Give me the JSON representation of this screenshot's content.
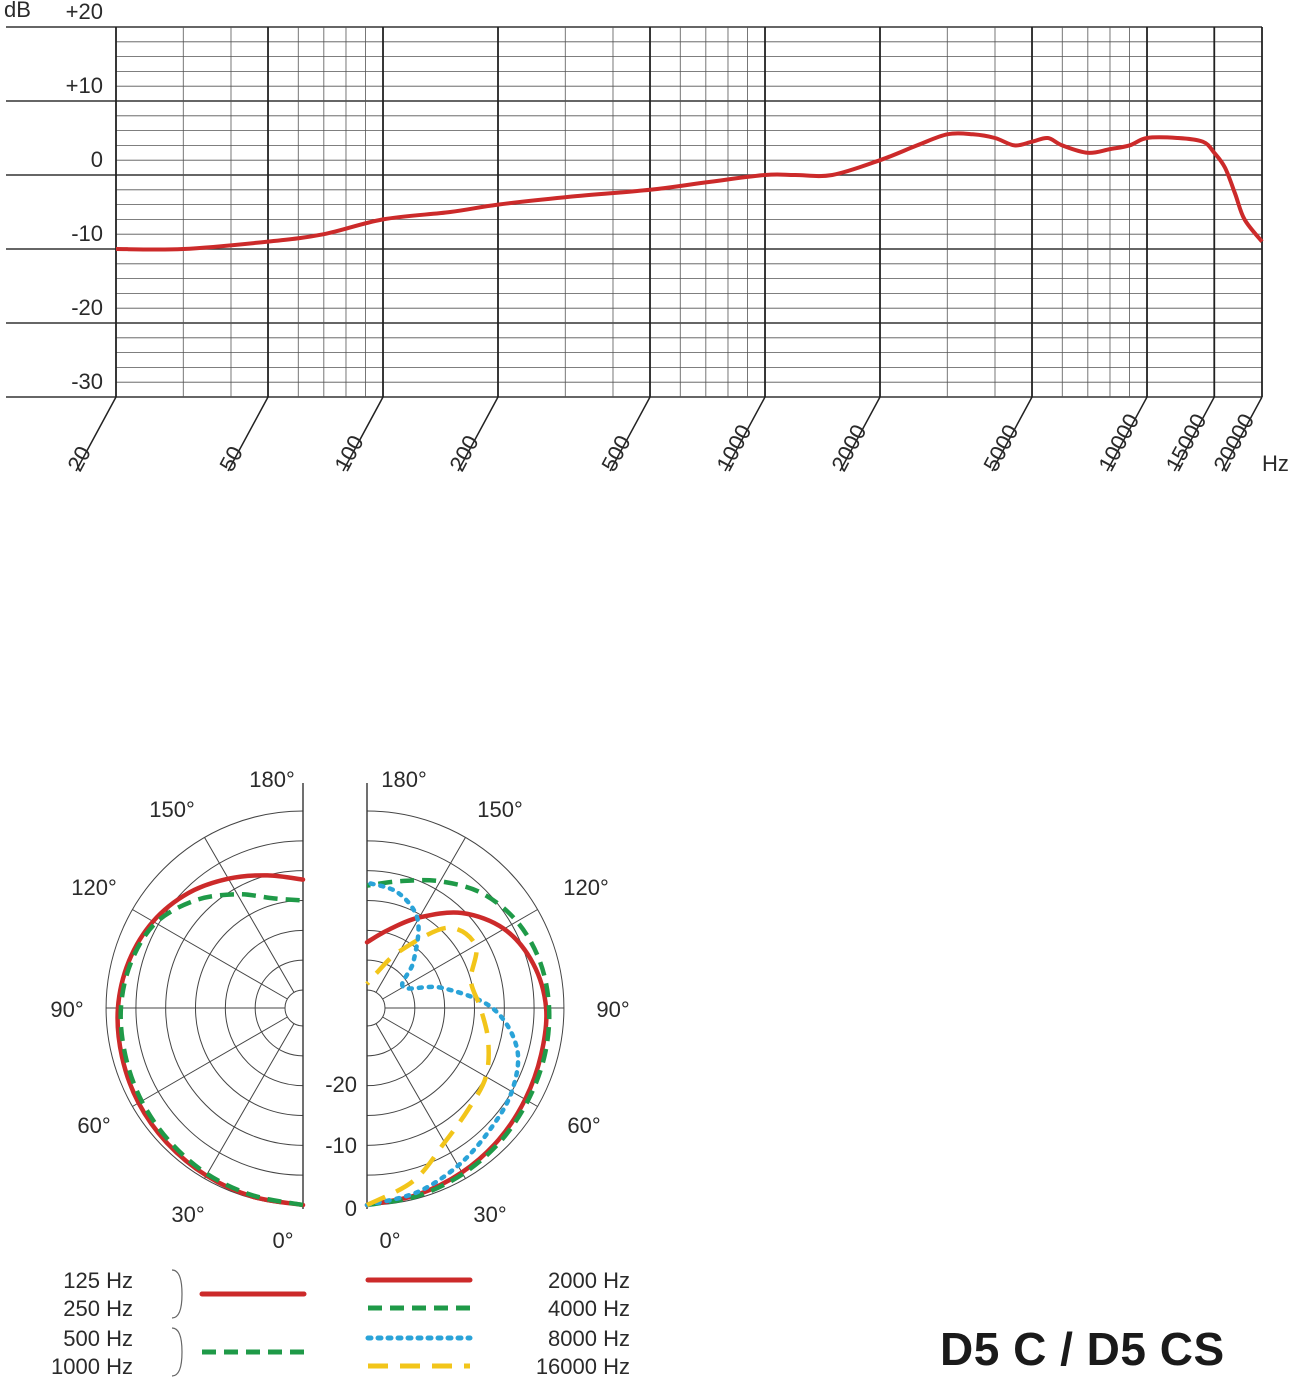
{
  "model_title": "D5 C / D5 CS",
  "chart_data": [
    {
      "type": "line",
      "title": "",
      "ylabel": "dB",
      "xlabel": "Hz",
      "xscale": "log",
      "xlim": [
        20,
        20000
      ],
      "ylim": [
        -30,
        20
      ],
      "grid": true,
      "y_ticks": [
        {
          "value": 20,
          "label": "+20"
        },
        {
          "value": 10,
          "label": "+10"
        },
        {
          "value": 0,
          "label": "0"
        },
        {
          "value": -10,
          "label": "-10"
        },
        {
          "value": -20,
          "label": "-20"
        },
        {
          "value": -30,
          "label": "-30"
        }
      ],
      "x_ticks": [
        "20",
        "50",
        "100",
        "200",
        "500",
        "1000",
        "2000",
        "5000",
        "10000",
        "15000",
        "20000"
      ],
      "series": [
        {
          "color": "#cc2a2a",
          "x": [
            20,
            30,
            50,
            70,
            100,
            150,
            200,
            300,
            500,
            700,
            1000,
            1200,
            1500,
            2000,
            2500,
            3000,
            3500,
            4000,
            4500,
            5000,
            5500,
            6000,
            7000,
            8000,
            9000,
            10000,
            12000,
            14000,
            15000,
            16000,
            17000,
            18000,
            20000
          ],
          "y": [
            -10,
            -10,
            -9,
            -8,
            -6,
            -5,
            -4,
            -3,
            -2,
            -1,
            0,
            0,
            0,
            2,
            4,
            5.5,
            5.5,
            5,
            4,
            4.5,
            5,
            4,
            3,
            3.5,
            4,
            5,
            5,
            4.5,
            3,
            1,
            -2.5,
            -6,
            -9
          ]
        }
      ]
    },
    {
      "type": "polar",
      "title": "",
      "angle_labels": [
        "0°",
        "30°",
        "60°",
        "90°",
        "120°",
        "150°",
        "180°"
      ],
      "radial_labels": [
        "-20",
        "-10",
        "0"
      ],
      "rlim": [
        -30,
        0
      ],
      "legend": [
        {
          "group": "left",
          "label": "125 Hz",
          "color": "#cc2a2a",
          "style": "solid"
        },
        {
          "group": "left",
          "label": "250 Hz",
          "color": "#cc2a2a",
          "style": "solid"
        },
        {
          "group": "left",
          "label": "500 Hz",
          "color": "#1f9a48",
          "style": "dashed"
        },
        {
          "group": "left",
          "label": "1000 Hz",
          "color": "#1f9a48",
          "style": "dashed"
        },
        {
          "group": "right",
          "label": "2000 Hz",
          "color": "#cc2a2a",
          "style": "solid"
        },
        {
          "group": "right",
          "label": "4000 Hz",
          "color": "#1f9a48",
          "style": "dashed"
        },
        {
          "group": "right",
          "label": "8000 Hz",
          "color": "#2aa3d8",
          "style": "dotted"
        },
        {
          "group": "right",
          "label": "16000 Hz",
          "color": "#f2c51a",
          "style": "longdash"
        }
      ],
      "series": [
        {
          "side": "left",
          "legend_index": [
            0,
            1
          ],
          "color": "#cc2a2a",
          "style": "solid",
          "angles": [
            0,
            15,
            30,
            45,
            60,
            75,
            90,
            105,
            120,
            135,
            150,
            165,
            180
          ],
          "r_db": [
            0,
            -0.3,
            -0.6,
            -0.9,
            -1.2,
            -1.6,
            -2,
            -2.8,
            -4,
            -5.8,
            -8,
            -10,
            -11.5
          ]
        },
        {
          "side": "left",
          "legend_index": [
            2,
            3
          ],
          "color": "#1f9a48",
          "style": "dashed",
          "angles": [
            0,
            15,
            30,
            45,
            60,
            75,
            90,
            105,
            120,
            135,
            150,
            165,
            180
          ],
          "r_db": [
            0,
            -0.5,
            -0.9,
            -1.4,
            -1.8,
            -2.2,
            -2.5,
            -3.2,
            -4.5,
            -7.5,
            -11,
            -14,
            -15
          ]
        },
        {
          "side": "right",
          "legend_index": [
            4
          ],
          "color": "#cc2a2a",
          "style": "solid",
          "angles": [
            0,
            15,
            30,
            45,
            60,
            75,
            90,
            105,
            120,
            135,
            150,
            165,
            180
          ],
          "r_db": [
            0,
            -0.6,
            -1.2,
            -1.8,
            -2.4,
            -2.8,
            -3,
            -4.2,
            -6.5,
            -10.5,
            -15.5,
            -19.5,
            -22
          ]
        },
        {
          "side": "right",
          "legend_index": [
            5
          ],
          "color": "#1f9a48",
          "style": "dashed",
          "angles": [
            0,
            15,
            30,
            45,
            60,
            75,
            90,
            105,
            120,
            135,
            150,
            165,
            180
          ],
          "r_db": [
            0,
            -0.4,
            -0.9,
            -1.4,
            -1.9,
            -2.2,
            -2.5,
            -3,
            -4,
            -5.8,
            -8.5,
            -11,
            -12.5
          ]
        },
        {
          "side": "right",
          "legend_index": [
            6
          ],
          "color": "#2aa3d8",
          "style": "dotted",
          "angles": [
            0,
            15,
            30,
            45,
            60,
            75,
            90,
            105,
            120,
            135,
            150,
            165,
            180
          ],
          "r_db": [
            0,
            -1,
            -2.5,
            -4,
            -5,
            -7,
            -12,
            -20,
            -26,
            -22,
            -16,
            -13,
            -12
          ]
        },
        {
          "side": "right",
          "legend_index": [
            7
          ],
          "color": "#f2c51a",
          "style": "longdash",
          "angles": [
            0,
            15,
            30,
            45,
            60,
            75,
            90,
            105,
            120,
            135,
            150,
            165,
            180
          ],
          "r_db": [
            0,
            -3,
            -7,
            -9,
            -10,
            -12,
            -14,
            -15,
            -12,
            -14,
            -22,
            -27,
            -29
          ]
        }
      ]
    }
  ]
}
